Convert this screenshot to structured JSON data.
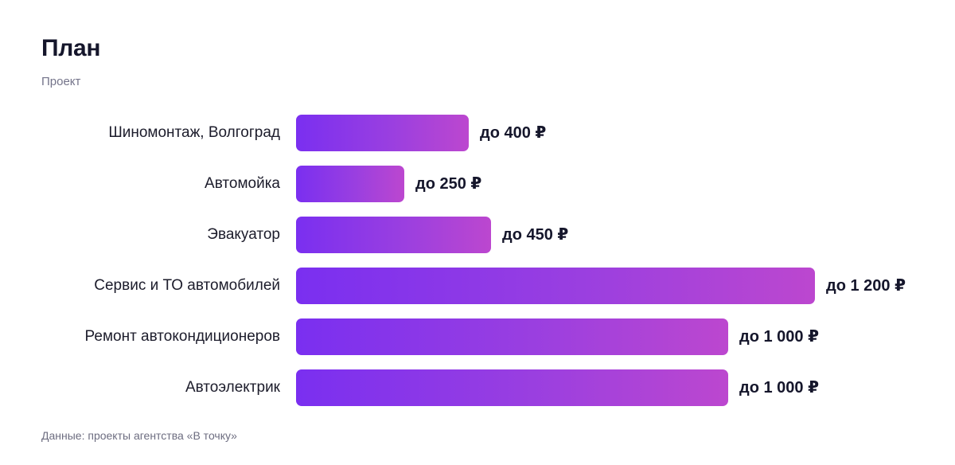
{
  "header": {
    "title": "План",
    "subtitle": "Проект"
  },
  "footer": {
    "source": "Данные: проекты агентства «В точку»"
  },
  "colors": {
    "bar_gradient_start": "#7a2ff0",
    "bar_gradient_end": "#bc47cf",
    "text": "#15162b",
    "muted": "#74748a"
  },
  "chart_data": {
    "type": "bar",
    "orientation": "horizontal",
    "title": "План",
    "subtitle": "Проект",
    "categories": [
      "Шиномонтаж, Волгоград",
      "Автомойка",
      "Эвакуатор",
      "Сервис и ТО автомобилей",
      "Ремонт автокондиционеров",
      "Автоэлектрик"
    ],
    "values": [
      400,
      250,
      450,
      1200,
      1000,
      1000
    ],
    "value_labels": [
      "до 400 ₽",
      "до 250 ₽",
      "до 450 ₽",
      "до 1 200 ₽",
      "до 1 000 ₽",
      "до 1 000 ₽"
    ],
    "xlim": [
      0,
      1200
    ],
    "grid": false,
    "legend": "none"
  }
}
